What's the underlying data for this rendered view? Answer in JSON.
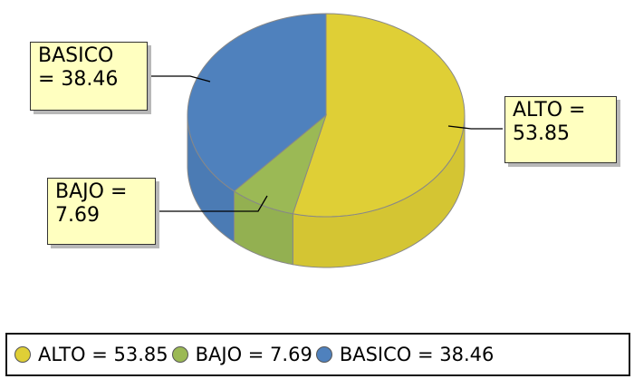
{
  "chart_data": {
    "type": "pie",
    "style": "3d",
    "slices": [
      {
        "label": "ALTO",
        "value": 53.85,
        "color": "#dfcf36",
        "callout": "ALTO =\n 53.85",
        "legend": "ALTO = 53.85"
      },
      {
        "label": "BAJO",
        "value": 7.69,
        "color": "#9bb955",
        "callout": "BAJO =\n  7.69",
        "legend": "BAJO = 7.69"
      },
      {
        "label": "BASICO",
        "value": 38.46,
        "color": "#4f81bd",
        "callout": "BASICO\n = 38.46",
        "legend": "BASICO = 38.46"
      }
    ],
    "legend_position": "bottom"
  }
}
